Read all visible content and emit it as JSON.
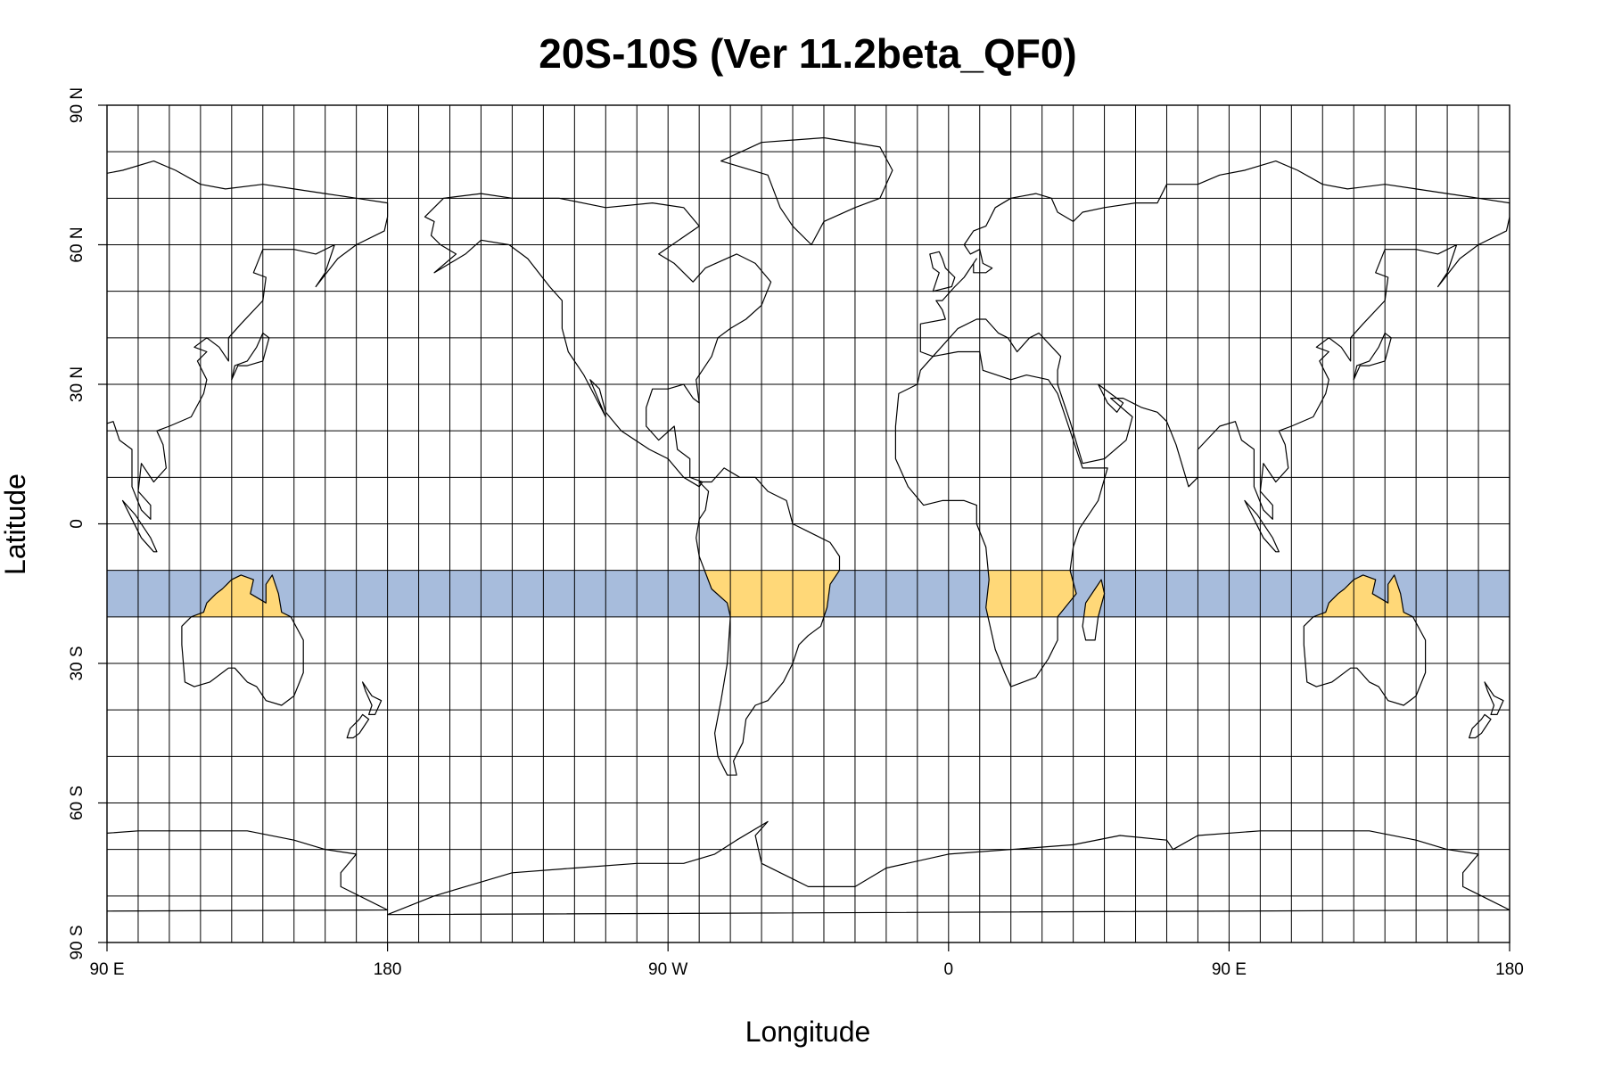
{
  "title": "20S-10S (Ver 11.2beta_QF0)",
  "xlabel": "Longitude",
  "ylabel": "Latitude",
  "x_ticks": [
    {
      "lon": -270,
      "label": "90 E"
    },
    {
      "lon": -180,
      "label": "180"
    },
    {
      "lon": -90,
      "label": "90 W"
    },
    {
      "lon": 0,
      "label": "0"
    },
    {
      "lon": 90,
      "label": "90 E"
    },
    {
      "lon": 180,
      "label": "180"
    }
  ],
  "y_ticks": [
    {
      "lat": 90,
      "label": "90 N"
    },
    {
      "lat": 60,
      "label": "60 N"
    },
    {
      "lat": 30,
      "label": "30 N"
    },
    {
      "lat": 0,
      "label": "0"
    },
    {
      "lat": -30,
      "label": "30 S"
    },
    {
      "lat": -60,
      "label": "60 S"
    },
    {
      "lat": -90,
      "label": "90 S"
    }
  ],
  "map": {
    "lon_range": [
      -270,
      180
    ],
    "lat_range": [
      -90,
      90
    ],
    "grid_lon_step": 10,
    "grid_lat_step": 10,
    "grid": true
  },
  "highlight_band": {
    "lat_min": -20,
    "lat_max": -10,
    "ocean_color": "#a7bcdc",
    "land_color": "#ffd878"
  },
  "colors": {
    "band_ocean": "#a7bcdc",
    "band_land": "#ffd878",
    "coastline": "#000000",
    "grid": "#000000"
  }
}
